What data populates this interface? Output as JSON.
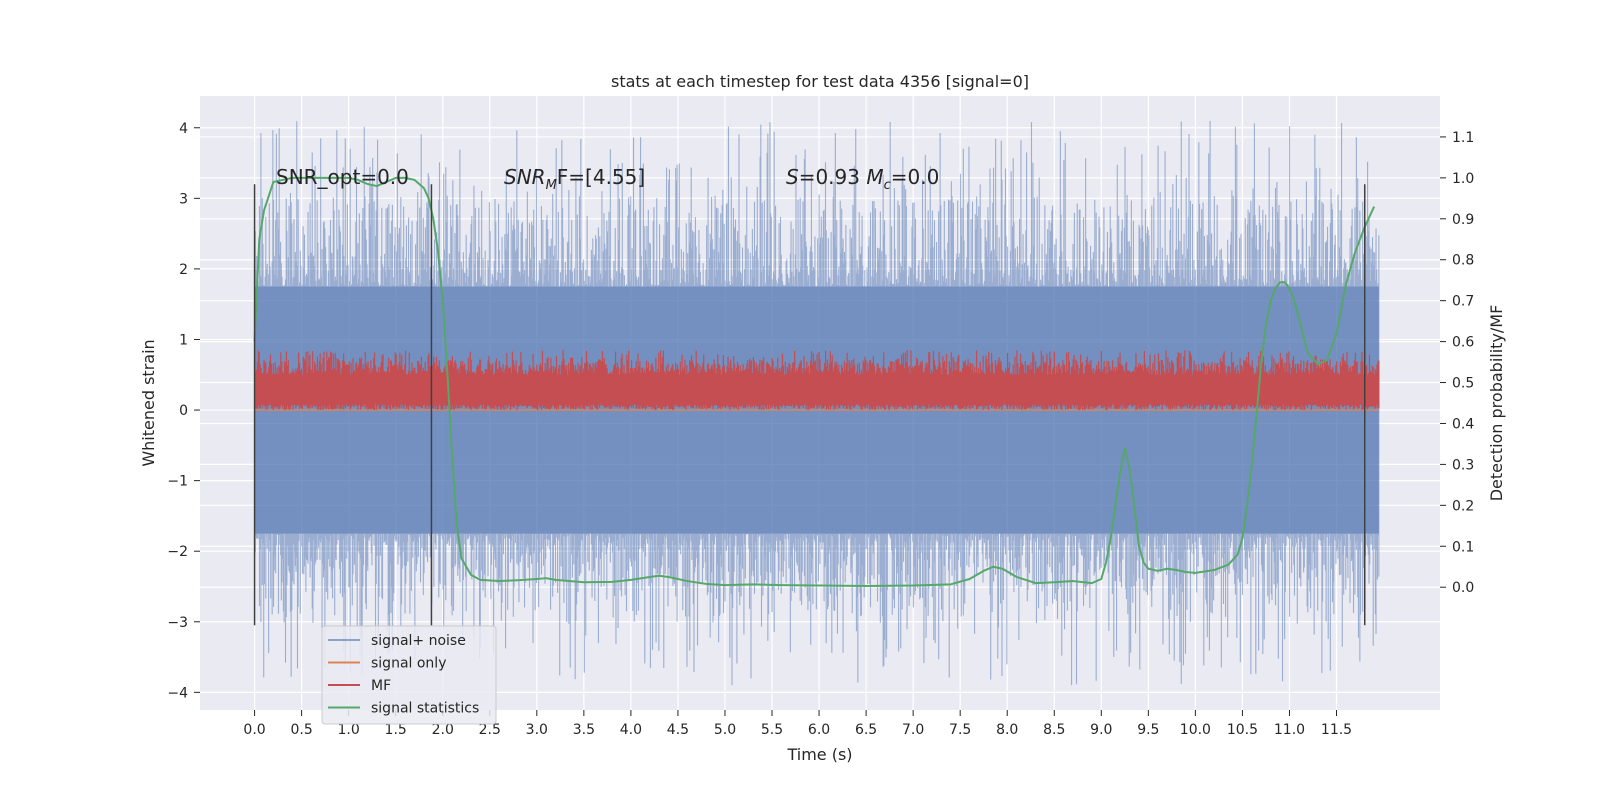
{
  "chart_data": {
    "type": "line",
    "title": "stats at each timestep for test data 4356 [signal=0]",
    "xlabel": "Time (s)",
    "ylabel": "Whitened strain",
    "ylabel_right": "Detection probability/MF",
    "xlim": [
      -0.58,
      12.6
    ],
    "ylim": [
      -4.25,
      4.45
    ],
    "ylim_right": [
      -0.3,
      1.2
    ],
    "x_ticks": [
      0.0,
      0.5,
      1.0,
      1.5,
      2.0,
      2.5,
      3.0,
      3.5,
      4.0,
      4.5,
      5.0,
      5.5,
      6.0,
      6.5,
      7.0,
      7.5,
      8.0,
      8.5,
      9.0,
      9.5,
      10.0,
      10.5,
      11.0,
      11.5
    ],
    "x_tick_labels": [
      "0.0",
      "0.5",
      "1.0",
      "1.5",
      "2.0",
      "2.5",
      "3.0",
      "3.5",
      "4.0",
      "4.5",
      "5.0",
      "5.5",
      "6.0",
      "6.5",
      "7.0",
      "7.5",
      "8.0",
      "8.5",
      "9.0",
      "9.5",
      "10.0",
      "10.5",
      "11.0",
      "11.5"
    ],
    "y_ticks": [
      -4,
      -3,
      -2,
      -1,
      0,
      1,
      2,
      3,
      4
    ],
    "y_tick_labels": [
      "−4",
      "−3",
      "−2",
      "−1",
      "0",
      "1",
      "2",
      "3",
      "4"
    ],
    "y_right_ticks": [
      0.0,
      0.1,
      0.2,
      0.3,
      0.4,
      0.5,
      0.6,
      0.7,
      0.8,
      0.9,
      1.0,
      1.1
    ],
    "y_right_tick_labels": [
      "0.0",
      "0.1",
      "0.2",
      "0.3",
      "0.4",
      "0.5",
      "0.6",
      "0.7",
      "0.8",
      "0.9",
      "1.0",
      "1.1"
    ],
    "grid": true,
    "legend_position": "lower-left",
    "colors": {
      "background": "#eaeaf2",
      "grid": "#ffffff",
      "signal_noise": "#4c72b0",
      "signal_only": "#dd8452",
      "mf": "#c44e52",
      "statistics": "#55a868",
      "vlines": "#404040"
    },
    "time_span": [
      0.0,
      11.95
    ],
    "noise_band": {
      "core_low": -1.75,
      "core_high": 1.75,
      "peak_high": 4.1,
      "peak_low": -3.9
    },
    "mf_band": {
      "low": 0.0,
      "high": 0.85
    },
    "vertical_lines": [
      {
        "x": 0.0,
        "y_low": -3.05,
        "y_high": 3.2
      },
      {
        "x": 1.88,
        "y_low": -3.05,
        "y_high": 3.2
      },
      {
        "x": 11.8,
        "y_low": -3.05,
        "y_high": 3.2
      }
    ],
    "series": [
      {
        "name": "signal+ noise",
        "axis": "left",
        "style": "noise"
      },
      {
        "name": "signal only",
        "axis": "left",
        "style": "line",
        "x": [
          0.0,
          11.95
        ],
        "y": [
          0.0,
          0.0
        ]
      },
      {
        "name": "MF",
        "axis": "left",
        "style": "mf"
      },
      {
        "name": "signal statistics",
        "axis": "right",
        "style": "line",
        "x": [
          0.0,
          0.05,
          0.1,
          0.2,
          0.4,
          0.6,
          0.8,
          1.0,
          1.1,
          1.2,
          1.3,
          1.4,
          1.5,
          1.6,
          1.7,
          1.8,
          1.85,
          1.9,
          1.95,
          2.0,
          2.05,
          2.1,
          2.15,
          2.2,
          2.3,
          2.4,
          2.6,
          2.8,
          3.0,
          3.1,
          3.2,
          3.5,
          3.8,
          4.0,
          4.2,
          4.3,
          4.4,
          4.6,
          4.8,
          5.0,
          5.3,
          5.6,
          6.0,
          6.5,
          7.0,
          7.4,
          7.6,
          7.75,
          7.85,
          7.95,
          8.1,
          8.3,
          8.5,
          8.7,
          8.9,
          9.0,
          9.05,
          9.1,
          9.15,
          9.2,
          9.25,
          9.3,
          9.35,
          9.4,
          9.45,
          9.5,
          9.6,
          9.7,
          9.8,
          9.9,
          10.0,
          10.2,
          10.35,
          10.45,
          10.5,
          10.55,
          10.6,
          10.65,
          10.7,
          10.75,
          10.8,
          10.85,
          10.9,
          10.95,
          11.0,
          11.05,
          11.1,
          11.15,
          11.2,
          11.3,
          11.4,
          11.5,
          11.55,
          11.6,
          11.7,
          11.8,
          11.9
        ],
        "y": [
          0.6,
          0.85,
          0.92,
          0.99,
          1.0,
          1.0,
          1.0,
          1.0,
          0.995,
          0.985,
          0.98,
          0.99,
          1.0,
          1.0,
          0.995,
          0.975,
          0.95,
          0.9,
          0.82,
          0.7,
          0.52,
          0.32,
          0.15,
          0.07,
          0.03,
          0.018,
          0.015,
          0.017,
          0.02,
          0.022,
          0.018,
          0.012,
          0.013,
          0.018,
          0.025,
          0.028,
          0.025,
          0.015,
          0.008,
          0.005,
          0.007,
          0.005,
          0.004,
          0.003,
          0.004,
          0.007,
          0.02,
          0.04,
          0.05,
          0.045,
          0.025,
          0.01,
          0.012,
          0.015,
          0.01,
          0.02,
          0.06,
          0.12,
          0.2,
          0.28,
          0.34,
          0.29,
          0.2,
          0.1,
          0.06,
          0.045,
          0.04,
          0.045,
          0.042,
          0.037,
          0.035,
          0.042,
          0.055,
          0.08,
          0.12,
          0.2,
          0.3,
          0.42,
          0.55,
          0.64,
          0.7,
          0.73,
          0.745,
          0.745,
          0.73,
          0.7,
          0.66,
          0.61,
          0.57,
          0.545,
          0.555,
          0.62,
          0.68,
          0.74,
          0.82,
          0.88,
          0.93
        ]
      }
    ],
    "legend": [
      {
        "label": "signal+ noise",
        "color": "#4c72b0"
      },
      {
        "label": "signal only",
        "color": "#dd8452"
      },
      {
        "label": "MF",
        "color": "#c44e52"
      },
      {
        "label": "signal statistics",
        "color": "#55a868"
      }
    ],
    "annotations": [
      {
        "text": "SNR_opt=0.0",
        "x": 0.22,
        "y": 3.3
      },
      {
        "text": "SNR_MF=[4.55]",
        "x": 2.6,
        "y": 3.3
      },
      {
        "text": "S=0.93   M_c=0.0",
        "x": 5.6,
        "y": 3.3
      }
    ]
  }
}
